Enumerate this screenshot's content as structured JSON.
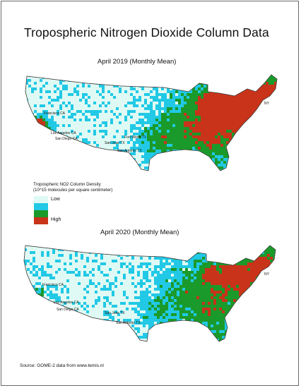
{
  "title": "Tropospheric Nitrogen Dioxide Column Data",
  "maps": [
    {
      "subtitle": "April 2019 (Monthly Mean)",
      "cities": [
        "Francisco CA",
        "Los Angeles CA",
        "San Diego CA",
        "Fort Worth TX",
        "San Jose TX",
        "San Antonio TX",
        "NY"
      ]
    },
    {
      "subtitle": "April 2020  (Monthly Mean)",
      "cities": [
        "Francisco CA",
        "Los Angeles CA",
        "San Diego CA",
        "San Jose TX",
        "San Antonio TX",
        "NY"
      ]
    }
  ],
  "legend": {
    "title_line1": "Tropospheric NO2 Column Density",
    "title_line2": "(10^15 molecules per square centimeter)",
    "low_label": "Low",
    "high_label": "High",
    "colors": [
      "#dffaf4",
      "#21c9e6",
      "#1a9a2a",
      "#c8331a"
    ]
  },
  "source": "Source:  GOME-2 data from www.temis.nl"
}
